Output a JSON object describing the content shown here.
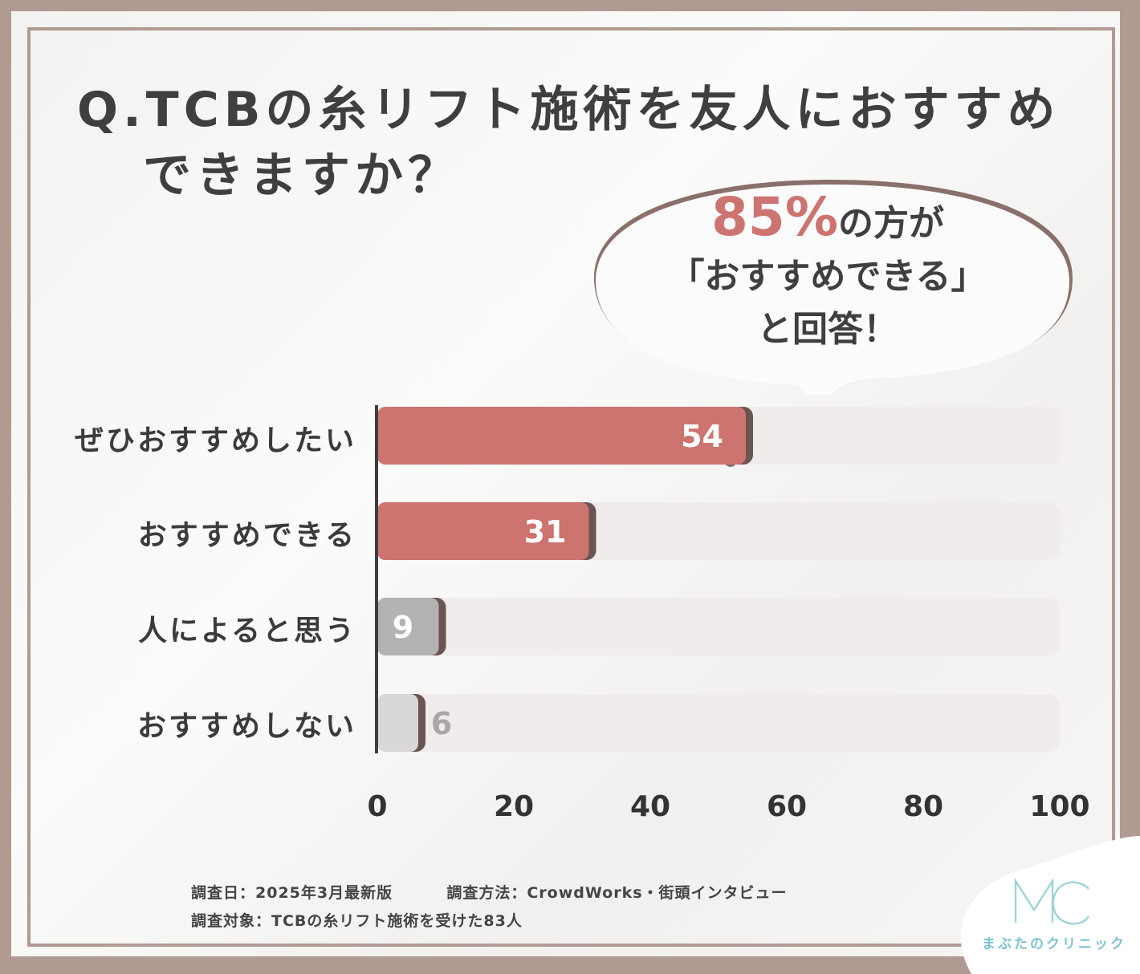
{
  "title": {
    "line1": "Q.TCBの糸リフト施術を友人におすすめ",
    "line2": "できますか？"
  },
  "callout": {
    "percent": "85%",
    "line1_suffix": "の方が",
    "line2": "「おすすめできる」",
    "line3": "と回答！"
  },
  "chart_data": {
    "type": "bar",
    "orientation": "horizontal",
    "categories": [
      "ぜひおすすめしたい",
      "おすすめできる",
      "人によると思う",
      "おすすめしない"
    ],
    "values": [
      54,
      31,
      9,
      6
    ],
    "value_labels": [
      "54",
      "31",
      "9",
      "6"
    ],
    "xlim": [
      0,
      100
    ],
    "xticks": [
      "0",
      "20",
      "40",
      "60",
      "80",
      "100"
    ],
    "xtick_values": [
      0,
      20,
      40,
      60,
      80,
      100
    ],
    "title": "Q.TCBの糸リフト施術を友人におすすめできますか？",
    "grid": false,
    "colors": {
      "highlight": "#cd7370",
      "neutral": "#b4b2b2",
      "light": "#d9d7d7",
      "track": "#efeceb",
      "bar_shadow": "#6a5552"
    }
  },
  "footnotes": {
    "date": "調査日：2025年3月最新版",
    "method": "調査方法：CrowdWorks・街頭インタビュー",
    "target": "調査対象：TCBの糸リフト施術を受けた83人"
  },
  "logo": {
    "mark": "MC",
    "name": "まぶたのクリニック"
  }
}
